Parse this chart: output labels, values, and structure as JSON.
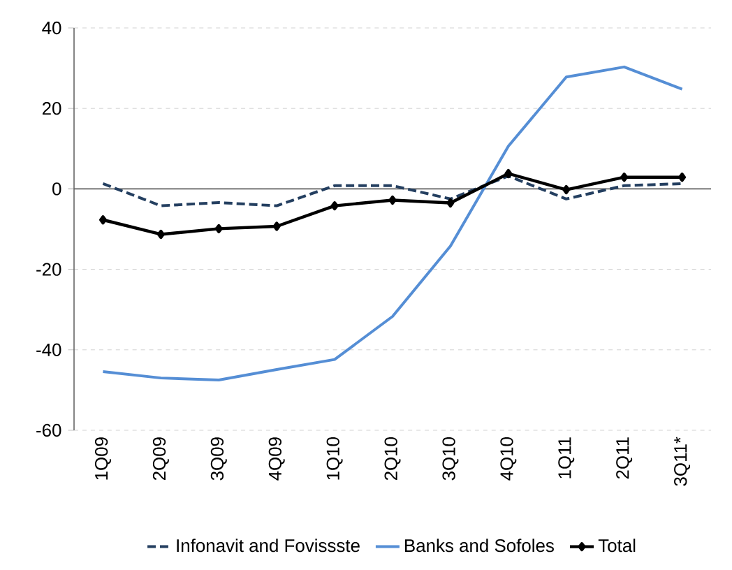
{
  "chart_data": {
    "type": "line",
    "categories": [
      "1Q09",
      "2Q09",
      "3Q09",
      "4Q09",
      "1Q10",
      "2Q10",
      "3Q10",
      "4Q10",
      "1Q11",
      "2Q11",
      "3Q11*"
    ],
    "series": [
      {
        "name": "Infonavit and Fovissste",
        "color": "#243f60",
        "line_style": "dashed",
        "marker": "none",
        "values": [
          1.3,
          -4.2,
          -3.4,
          -4.2,
          0.8,
          0.8,
          -2.5,
          3.2,
          -2.5,
          0.8,
          1.3
        ]
      },
      {
        "name": "Banks and Sofoles",
        "color": "#558ed5",
        "line_style": "solid",
        "marker": "none",
        "values": [
          -45.4,
          -47.0,
          -47.5,
          -44.9,
          -42.4,
          -31.7,
          -14.2,
          10.6,
          27.8,
          30.3,
          24.8
        ]
      },
      {
        "name": "Total",
        "color": "#000000",
        "line_style": "solid",
        "marker": "diamond",
        "values": [
          -7.7,
          -11.3,
          -9.9,
          -9.3,
          -4.2,
          -2.8,
          -3.5,
          3.8,
          -0.2,
          2.9,
          2.9
        ]
      }
    ],
    "ylim": [
      -60,
      40
    ],
    "yticks": [
      -60,
      -40,
      -20,
      0,
      20,
      40
    ],
    "grid": "y",
    "legend": "bottom"
  }
}
